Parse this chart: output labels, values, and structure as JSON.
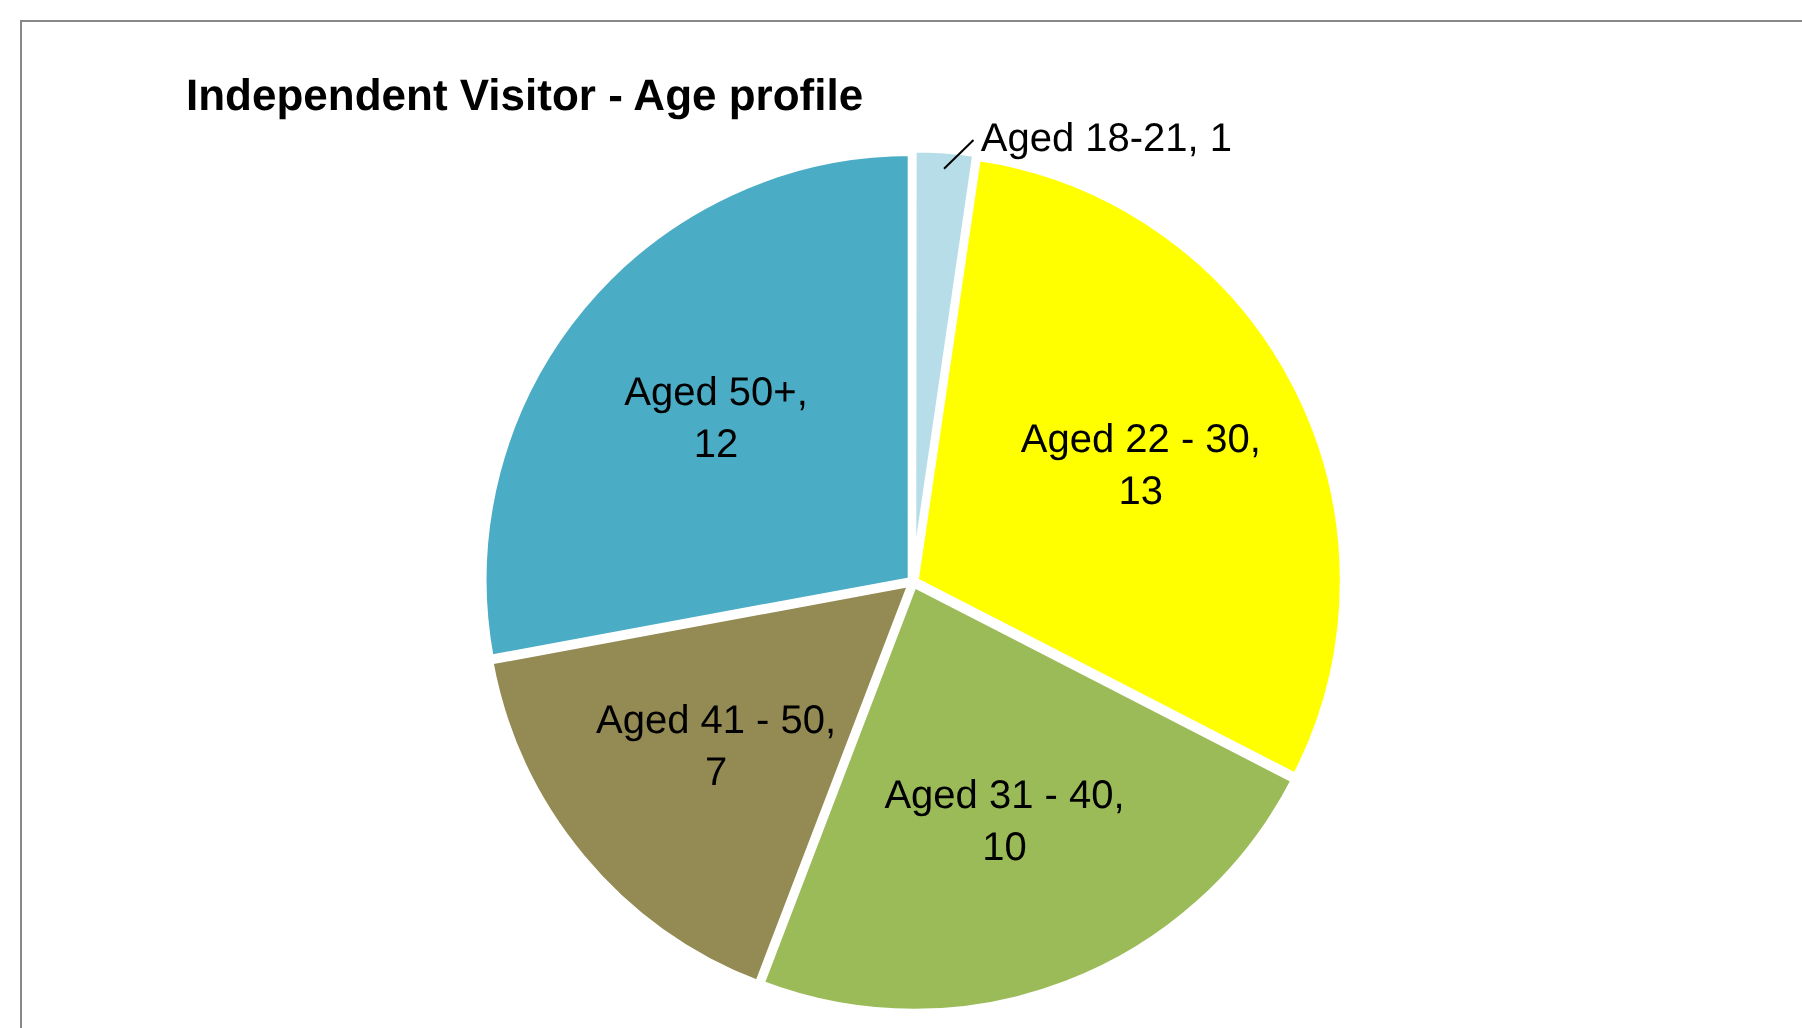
{
  "chart_data": {
    "type": "pie",
    "title": "Independent Visitor - Age profile",
    "categories": [
      "Aged 18-21",
      "Aged 22 - 30",
      "Aged 31 - 40",
      "Aged 41 - 50",
      "Aged 50+"
    ],
    "values": [
      1,
      13,
      10,
      7,
      12
    ],
    "colors": [
      "#b7dde8",
      "#ffff00",
      "#9bbb59",
      "#948a54",
      "#4bacc6"
    ],
    "value_labels": [
      ", 1",
      ",\n13",
      ",\n10",
      ",\n7",
      ",\n12"
    ],
    "legend": false
  }
}
